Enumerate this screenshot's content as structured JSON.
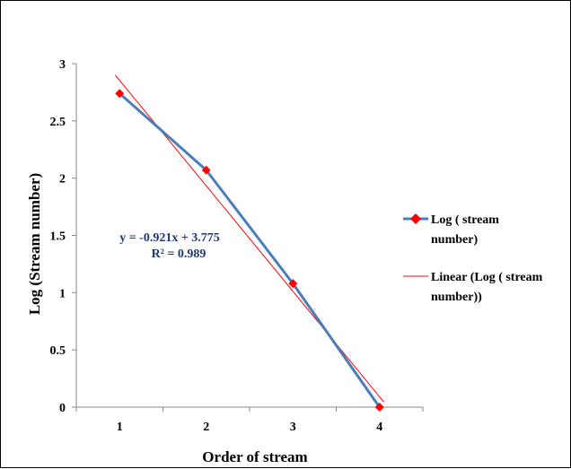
{
  "chart_data": {
    "type": "line",
    "xlabel": "Order of stream",
    "ylabel": "Log  (Stream number)",
    "categories": [
      "1",
      "2",
      "3",
      "4"
    ],
    "x": [
      1,
      2,
      3,
      4
    ],
    "ylim": [
      0,
      3
    ],
    "yticks": [
      "0",
      "0.5",
      "1",
      "1.5",
      "2",
      "2.5",
      "3"
    ],
    "grid": false,
    "legend_position": "right",
    "series": [
      {
        "name": "Log ( stream number)",
        "values": [
          2.74,
          2.07,
          1.08,
          0.0
        ],
        "color": "#4a7ebb",
        "marker": "diamond",
        "marker_color": "#ff0000"
      }
    ],
    "trendline": {
      "name": "Linear (Log ( stream number))",
      "type": "linear",
      "slope": -0.921,
      "intercept": 3.775,
      "color": "#ff0000",
      "equation": "y = -0.921x + 3.775",
      "r2": "R² = 0.989"
    },
    "legend": [
      {
        "line1": "Log ( stream",
        "line2": "number)"
      },
      {
        "line1": "Linear (Log ( stream",
        "line2": "number))"
      }
    ]
  }
}
